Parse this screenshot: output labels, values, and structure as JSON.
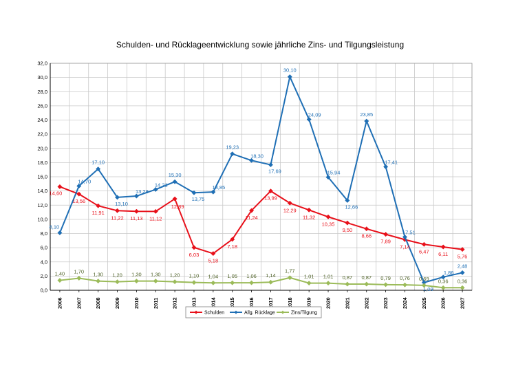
{
  "chart_data": {
    "type": "line",
    "title": "Schulden- und Rücklageentwicklung sowie jährliche Zins- und Tilgungsleistung",
    "categories": [
      "2006",
      "2007",
      "2008",
      "2009",
      "2010",
      "2011",
      "2012",
      "2013",
      "2014",
      "2015",
      "2016",
      "2017",
      "2018",
      "2019",
      "2020",
      "2021",
      "2022",
      "2023",
      "2024",
      "2025",
      "2026",
      "2027"
    ],
    "ylim": [
      0,
      32
    ],
    "yticks": [
      "0,0",
      "2,0",
      "4,0",
      "6,0",
      "8,0",
      "10,0",
      "12,0",
      "14,0",
      "16,0",
      "18,0",
      "20,0",
      "22,0",
      "24,0",
      "26,0",
      "28,0",
      "30,0",
      "32,0"
    ],
    "grid": true,
    "legend_position": "bottom",
    "series": [
      {
        "name": "Schulden",
        "color": "#e8101a",
        "marker": "diamond",
        "values": [
          14.6,
          13.56,
          11.91,
          11.22,
          11.13,
          11.12,
          12.89,
          6.03,
          5.18,
          7.18,
          11.24,
          13.99,
          12.29,
          11.32,
          10.35,
          9.5,
          8.66,
          7.89,
          7.14,
          6.47,
          6.11,
          5.76
        ],
        "labels": [
          "14,60",
          "13,56",
          "11,91",
          "11,22",
          "11,13",
          "11,12",
          "12,89",
          "6,03",
          "5,18",
          "7,18",
          "11,24",
          "13,99",
          "12,29",
          "11,32",
          "10,35",
          "9,50",
          "8,66",
          "7,89",
          "7,14",
          "6,47",
          "6,11",
          "5,76"
        ]
      },
      {
        "name": "Allg. Rücklage",
        "color": "#1f6fb5",
        "marker": "diamond",
        "values": [
          8.1,
          14.7,
          17.1,
          13.1,
          13.28,
          14.21,
          15.3,
          13.75,
          13.85,
          19.23,
          18.3,
          17.69,
          30.1,
          24.09,
          15.94,
          12.66,
          23.85,
          17.41,
          7.51,
          1.09,
          1.86,
          2.48
        ],
        "labels": [
          "8,10",
          "14,70",
          "17,10",
          "13,10",
          "13,28",
          "14,21",
          "15,30",
          "13,75",
          "13,85",
          "19,23",
          "18,30",
          "17,69",
          "30,10",
          "24,09",
          "15,94",
          "12,66",
          "23,85",
          "17,41",
          "7,51",
          "1,09",
          "1,86",
          "2,48"
        ]
      },
      {
        "name": "Zins/Tilgung",
        "color": "#9bbb59",
        "marker": "diamond",
        "values": [
          1.4,
          1.7,
          1.3,
          1.2,
          1.3,
          1.3,
          1.2,
          1.1,
          1.04,
          1.05,
          1.06,
          1.14,
          1.77,
          1.01,
          1.01,
          0.87,
          0.87,
          0.79,
          0.76,
          0.69,
          0.36,
          0.36
        ],
        "labels": [
          "1,40",
          "1,70",
          "1,30",
          "1,20",
          "1,30",
          "1,30",
          "1,20",
          "1,10",
          "1,04",
          "1,05",
          "1,06",
          "1,14",
          "1,77",
          "1,01",
          "1,01",
          "0,87",
          "0,87",
          "0,79",
          "0,76",
          "0,69",
          "0,36",
          "0,36"
        ]
      }
    ]
  }
}
